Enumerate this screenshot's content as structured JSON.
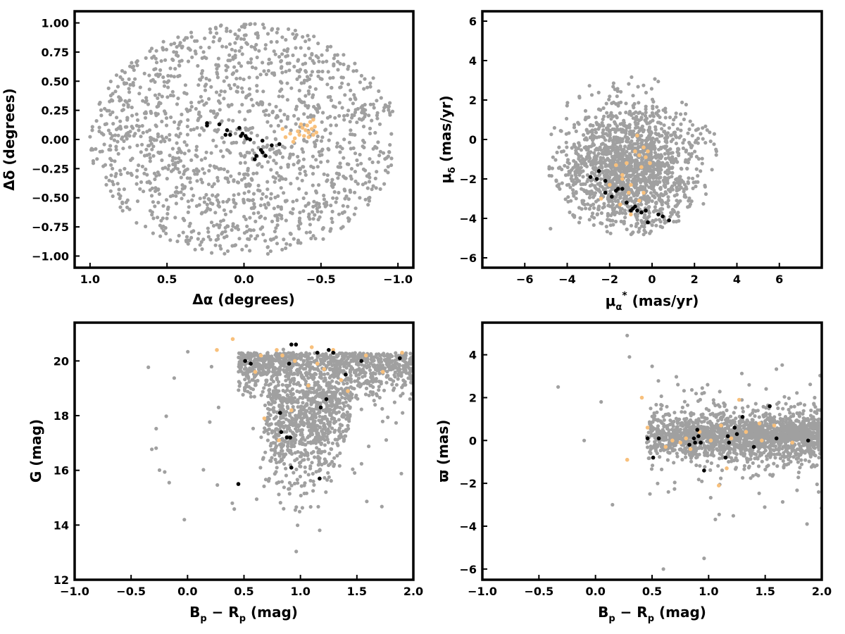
{
  "colors": {
    "background_stars": "#a0a0a0",
    "member_a": "#000000",
    "member_b": "#f8c07c",
    "axes": "#000000"
  },
  "chart_data": [
    {
      "id": "sky",
      "type": "scatter",
      "xlabel": "Δα (degrees)",
      "ylabel": "Δδ (degrees)",
      "xlim": [
        1.1,
        -1.1
      ],
      "ylim": [
        -1.1,
        1.1
      ],
      "xticks": [
        "1.0",
        "0.5",
        "0.0",
        "−0.5",
        "−1.0"
      ],
      "xtick_values": [
        1.0,
        0.5,
        0.0,
        -0.5,
        -1.0
      ],
      "yticks": [
        "−1.00",
        "−0.75",
        "−0.50",
        "−0.25",
        "0.00",
        "0.25",
        "0.50",
        "0.75",
        "1.00"
      ],
      "ytick_values": [
        -1.0,
        -0.75,
        -0.5,
        -0.25,
        0.0,
        0.25,
        0.5,
        0.75,
        1.0
      ],
      "background": {
        "shape": "disk",
        "center": [
          0.0,
          0.0
        ],
        "radius": 1.0,
        "count": 1500
      },
      "series": [
        {
          "points": [
            [
              0.24,
              0.14
            ],
            [
              0.24,
              0.12
            ],
            [
              0.16,
              0.13
            ],
            [
              0.12,
              0.04
            ],
            [
              0.11,
              0.08
            ],
            [
              0.09,
              0.04
            ],
            [
              0.03,
              0.1
            ],
            [
              0.02,
              0.03
            ],
            [
              0.01,
              0.05
            ],
            [
              -0.01,
              0.03
            ],
            [
              -0.02,
              0.01
            ],
            [
              -0.04,
              0.0
            ],
            [
              -0.07,
              -0.17
            ],
            [
              -0.08,
              -0.14
            ],
            [
              -0.11,
              -0.09
            ],
            [
              -0.12,
              -0.11
            ],
            [
              -0.12,
              -0.01
            ],
            [
              -0.14,
              -0.14
            ],
            [
              -0.18,
              -0.05
            ],
            [
              -0.23,
              -0.04
            ]
          ]
        },
        {
          "points": [
            [
              -0.25,
              0.09
            ],
            [
              -0.27,
              0.02
            ],
            [
              -0.3,
              0.05
            ],
            [
              -0.32,
              -0.02
            ],
            [
              -0.33,
              0.01
            ],
            [
              -0.35,
              0.07
            ],
            [
              -0.36,
              0.04
            ],
            [
              -0.38,
              0.1
            ],
            [
              -0.39,
              0.03
            ],
            [
              -0.4,
              0.08
            ],
            [
              -0.41,
              0.12
            ],
            [
              -0.42,
              0.06
            ],
            [
              -0.43,
              0.15
            ],
            [
              -0.44,
              0.09
            ],
            [
              -0.45,
              0.04
            ],
            [
              -0.45,
              0.17
            ],
            [
              -0.46,
              0.11
            ],
            [
              -0.47,
              0.06
            ],
            [
              -0.42,
              0.02
            ],
            [
              -0.37,
              0.13
            ]
          ]
        }
      ]
    },
    {
      "id": "pm",
      "type": "scatter",
      "xlabel": "μα* (mas/yr)",
      "ylabel": "μδ (mas/yr)",
      "xlim": [
        -8.0,
        8.0
      ],
      "ylim": [
        -6.5,
        6.5
      ],
      "xticks": [
        "−6",
        "−4",
        "−2",
        "0",
        "2",
        "4",
        "6"
      ],
      "xtick_values": [
        -6,
        -4,
        -2,
        0,
        2,
        4,
        6
      ],
      "yticks": [
        "−6",
        "−4",
        "−2",
        "0",
        "2",
        "4",
        "6"
      ],
      "ytick_values": [
        -6,
        -4,
        -2,
        0,
        2,
        4,
        6
      ],
      "background": {
        "shape": "blob",
        "center": [
          -1.0,
          -1.5
        ],
        "spread": [
          1.7,
          1.7
        ],
        "clip_y": [
          -4.9,
          4.8
        ],
        "count": 1600
      },
      "series": [
        {
          "points": [
            [
              -2.9,
              -1.9
            ],
            [
              -2.6,
              -2.0
            ],
            [
              -2.5,
              -1.6
            ],
            [
              -2.2,
              -2.1
            ],
            [
              -2.2,
              -2.7
            ],
            [
              -1.9,
              -2.9
            ],
            [
              -1.6,
              -2.5
            ],
            [
              -1.4,
              -2.5
            ],
            [
              -1.2,
              -3.2
            ],
            [
              -1.0,
              -3.6
            ],
            [
              -0.8,
              -3.4
            ],
            [
              -0.7,
              -3.6
            ],
            [
              -0.5,
              -3.7
            ],
            [
              -0.3,
              -3.6
            ],
            [
              -0.2,
              -4.2
            ],
            [
              0.3,
              -3.8
            ],
            [
              0.5,
              -3.9
            ],
            [
              0.8,
              -4.1
            ],
            [
              -1.7,
              -2.6
            ],
            [
              -0.9,
              -3.5
            ]
          ]
        },
        {
          "points": [
            [
              -2.4,
              -3.0
            ],
            [
              -2.0,
              -2.3
            ],
            [
              -1.7,
              -1.3
            ],
            [
              -1.5,
              -3.3
            ],
            [
              -1.4,
              -2.0
            ],
            [
              -1.4,
              -1.8
            ],
            [
              -1.2,
              -1.2
            ],
            [
              -1.1,
              -2.7
            ],
            [
              -1.0,
              -2.3
            ],
            [
              -0.8,
              -0.6
            ],
            [
              -0.7,
              0.2
            ],
            [
              -0.6,
              -0.8
            ],
            [
              -0.5,
              -1.4
            ],
            [
              -0.4,
              -0.4
            ],
            [
              -0.4,
              -2.7
            ],
            [
              -0.3,
              -0.9
            ],
            [
              -0.2,
              -0.6
            ],
            [
              -0.1,
              -1.2
            ],
            [
              -0.6,
              -3.1
            ],
            [
              -1.0,
              -3.8
            ]
          ]
        }
      ]
    },
    {
      "id": "cmd",
      "type": "scatter",
      "xlabel": "Bp − Rp (mag)",
      "ylabel": "G (mag)",
      "xlim": [
        -1.0,
        2.0
      ],
      "ylim": [
        12.0,
        21.4
      ],
      "xticks": [
        "−1.0",
        "−0.5",
        "0.0",
        "0.5",
        "1.0",
        "1.5",
        "2.0"
      ],
      "xtick_values": [
        -1.0,
        -0.5,
        0.0,
        0.5,
        1.0,
        1.5,
        2.0
      ],
      "yticks": [
        "12",
        "14",
        "16",
        "18",
        "20"
      ],
      "ytick_values": [
        12,
        14,
        16,
        18,
        20
      ],
      "background": {
        "shape": "cmd",
        "count": 1800
      },
      "series": [
        {
          "points": [
            [
              0.45,
              15.5
            ],
            [
              0.51,
              20.0
            ],
            [
              0.56,
              19.9
            ],
            [
              0.82,
              18.1
            ],
            [
              0.83,
              17.4
            ],
            [
              0.88,
              17.2
            ],
            [
              0.9,
              19.9
            ],
            [
              0.91,
              17.2
            ],
            [
              0.92,
              20.6
            ],
            [
              0.92,
              16.1
            ],
            [
              0.96,
              20.6
            ],
            [
              1.15,
              20.3
            ],
            [
              1.17,
              15.7
            ],
            [
              1.18,
              18.3
            ],
            [
              1.23,
              18.6
            ],
            [
              1.25,
              20.4
            ],
            [
              1.29,
              20.3
            ],
            [
              1.4,
              19.5
            ],
            [
              1.54,
              20.0
            ],
            [
              1.88,
              20.1
            ]
          ]
        },
        {
          "points": [
            [
              0.26,
              20.4
            ],
            [
              0.4,
              20.8
            ],
            [
              0.6,
              19.6
            ],
            [
              0.65,
              20.2
            ],
            [
              0.68,
              17.9
            ],
            [
              0.79,
              20.4
            ],
            [
              0.81,
              17.1
            ],
            [
              0.84,
              20.2
            ],
            [
              0.92,
              18.2
            ],
            [
              0.95,
              20.0
            ],
            [
              1.07,
              19.1
            ],
            [
              1.1,
              20.5
            ],
            [
              1.15,
              19.9
            ],
            [
              1.21,
              19.7
            ],
            [
              1.29,
              20.4
            ],
            [
              1.36,
              19.3
            ],
            [
              1.42,
              18.9
            ],
            [
              1.58,
              20.2
            ],
            [
              1.73,
              19.6
            ],
            [
              1.9,
              20.3
            ]
          ]
        }
      ]
    },
    {
      "id": "parallax",
      "type": "scatter",
      "xlabel": "Bp − Rp (mag)",
      "ylabel": "ϖ (mas)",
      "xlim": [
        -1.0,
        2.0
      ],
      "ylim": [
        -6.5,
        5.5
      ],
      "xticks": [
        "−1.0",
        "−0.5",
        "0.0",
        "0.5",
        "1.0",
        "1.5",
        "2.0"
      ],
      "xtick_values": [
        -1.0,
        -0.5,
        0.0,
        0.5,
        1.0,
        1.5,
        2.0
      ],
      "yticks": [
        "−6",
        "−4",
        "−2",
        "0",
        "2",
        "4"
      ],
      "ytick_values": [
        -6,
        -4,
        -2,
        0,
        2,
        4
      ],
      "background": {
        "shape": "parallax",
        "count": 1800
      },
      "series": [
        {
          "points": [
            [
              0.46,
              0.1
            ],
            [
              0.51,
              -0.8
            ],
            [
              0.56,
              0.1
            ],
            [
              0.83,
              -0.2
            ],
            [
              0.87,
              0.1
            ],
            [
              0.88,
              -0.1
            ],
            [
              0.9,
              0.5
            ],
            [
              0.91,
              0.2
            ],
            [
              0.93,
              -0.1
            ],
            [
              0.96,
              -1.4
            ],
            [
              1.15,
              -0.8
            ],
            [
              1.17,
              0.2
            ],
            [
              1.18,
              -0.1
            ],
            [
              1.23,
              0.6
            ],
            [
              1.25,
              0.3
            ],
            [
              1.3,
              1.1
            ],
            [
              1.4,
              -0.3
            ],
            [
              1.54,
              1.6
            ],
            [
              1.6,
              0.1
            ],
            [
              1.88,
              0.0
            ]
          ]
        },
        {
          "points": [
            [
              0.28,
              -0.9
            ],
            [
              0.41,
              2.0
            ],
            [
              0.46,
              0.6
            ],
            [
              0.62,
              -0.3
            ],
            [
              0.68,
              0.0
            ],
            [
              0.75,
              -0.1
            ],
            [
              0.8,
              0.1
            ],
            [
              0.84,
              -0.4
            ],
            [
              0.92,
              0.4
            ],
            [
              1.02,
              0.0
            ],
            [
              1.09,
              -2.1
            ],
            [
              1.11,
              0.7
            ],
            [
              1.16,
              -1.3
            ],
            [
              1.2,
              0.1
            ],
            [
              1.27,
              1.9
            ],
            [
              1.33,
              0.4
            ],
            [
              1.45,
              0.8
            ],
            [
              1.47,
              0.0
            ],
            [
              1.58,
              0.7
            ],
            [
              1.74,
              -0.1
            ]
          ]
        }
      ]
    }
  ]
}
